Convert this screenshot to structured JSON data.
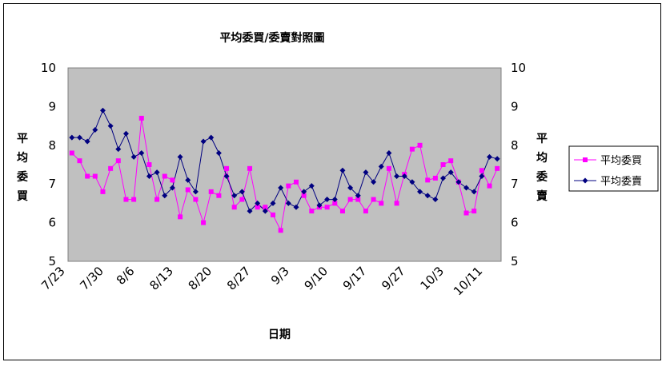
{
  "chart_data": {
    "type": "line",
    "title": "平均委買/委賣對照圖",
    "xlabel": "日期",
    "ylabel_left": "平均委買",
    "ylabel_right": "平均委賣",
    "ylim": [
      5,
      10
    ],
    "yticks": [
      5,
      6,
      7,
      8,
      9,
      10
    ],
    "grid": false,
    "plot_background": "#c0c0c0",
    "legend_position": "right",
    "x_tick_labels": [
      "7/23",
      "7/30",
      "8/6",
      "8/13",
      "8/20",
      "8/27",
      "9/3",
      "9/10",
      "9/17",
      "9/27",
      "10/3",
      "10/11"
    ],
    "series": [
      {
        "name": "平均委買",
        "color": "#ff00ff",
        "marker": "square",
        "values": [
          7.8,
          7.6,
          7.2,
          7.2,
          6.8,
          7.4,
          7.6,
          6.6,
          6.6,
          8.7,
          7.5,
          6.6,
          7.2,
          7.1,
          6.15,
          6.85,
          6.6,
          6.0,
          6.8,
          6.7,
          7.4,
          6.4,
          6.6,
          7.4,
          6.4,
          6.4,
          6.2,
          5.8,
          6.95,
          7.05,
          6.7,
          6.3,
          6.4,
          6.4,
          6.5,
          6.3,
          6.6,
          6.6,
          6.3,
          6.6,
          6.5,
          7.4,
          6.5,
          7.25,
          7.9,
          8.0,
          7.1,
          7.15,
          7.5,
          7.6,
          7.05,
          6.25,
          6.3,
          7.35,
          6.95,
          7.4
        ]
      },
      {
        "name": "平均委賣",
        "color": "#000080",
        "marker": "diamond",
        "values": [
          8.2,
          8.2,
          8.1,
          8.4,
          8.9,
          8.5,
          7.9,
          8.3,
          7.7,
          7.8,
          7.2,
          7.3,
          6.7,
          6.9,
          7.7,
          7.1,
          6.8,
          8.1,
          8.2,
          7.8,
          7.2,
          6.7,
          6.8,
          6.3,
          6.5,
          6.3,
          6.5,
          6.9,
          6.5,
          6.4,
          6.8,
          6.95,
          6.45,
          6.6,
          6.6,
          7.35,
          6.9,
          6.7,
          7.3,
          7.05,
          7.45,
          7.8,
          7.2,
          7.2,
          7.05,
          6.8,
          6.7,
          6.6,
          7.15,
          7.3,
          7.05,
          6.9,
          6.8,
          7.2,
          7.7,
          7.65
        ]
      }
    ]
  }
}
